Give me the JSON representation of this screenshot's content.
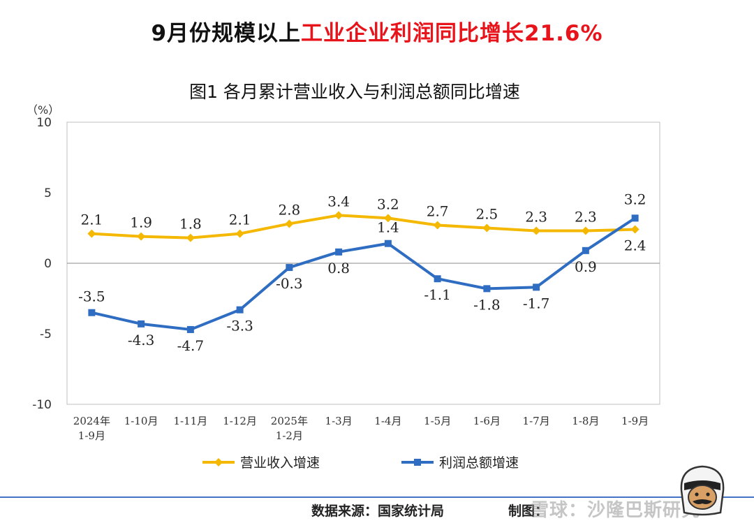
{
  "headline": {
    "part1": "9月份规模以上",
    "part2": "工业企业利润同比增长21.6%"
  },
  "colors": {
    "revenue": "#f5b800",
    "profit": "#2e6dc1",
    "accent_red": "#e8141b",
    "footer_line": "#4472c4"
  },
  "chart_data": {
    "type": "line",
    "title": "图1  各月累计营业收入与利润总额同比增速",
    "unit_label": "（%）",
    "ylim": [
      -10,
      10
    ],
    "y_ticks": [
      -10,
      -5,
      0,
      5,
      10
    ],
    "categories": [
      [
        "2024年",
        "1-9月"
      ],
      [
        "1-10月"
      ],
      [
        "1-11月"
      ],
      [
        "1-12月"
      ],
      [
        "2025年",
        "1-2月"
      ],
      [
        "1-3月"
      ],
      [
        "1-4月"
      ],
      [
        "1-5月"
      ],
      [
        "1-6月"
      ],
      [
        "1-7月"
      ],
      [
        "1-8月"
      ],
      [
        "1-9月"
      ]
    ],
    "series": [
      {
        "name": "营业收入增速",
        "color": "#f5b800",
        "marker": "diamond",
        "values": [
          2.1,
          1.9,
          1.8,
          2.1,
          2.8,
          3.4,
          3.2,
          2.7,
          2.5,
          2.3,
          2.3,
          2.4
        ],
        "labels": [
          "2.1",
          "1.9",
          "1.8",
          "2.1",
          "2.8",
          "3.4",
          "3.2",
          "2.7",
          "2.5",
          "2.3",
          "2.3",
          "2.4"
        ]
      },
      {
        "name": "利润总额增速",
        "color": "#2e6dc1",
        "marker": "square",
        "values": [
          -3.5,
          -4.3,
          -4.7,
          -3.3,
          -0.3,
          0.8,
          1.4,
          -1.1,
          -1.8,
          -1.7,
          0.9,
          3.2
        ],
        "labels": [
          "-3.5",
          "-4.3",
          "-4.7",
          "-3.3",
          "-0.3",
          "0.8",
          "1.4",
          "-1.1",
          "-1.8",
          "-1.7",
          "0.9",
          "3.2"
        ]
      }
    ],
    "legend": "bottom"
  },
  "footer": {
    "source": "数据来源：国家统计局",
    "maker": "制图：",
    "watermark": "雪球：沙隆巴斯研究"
  }
}
